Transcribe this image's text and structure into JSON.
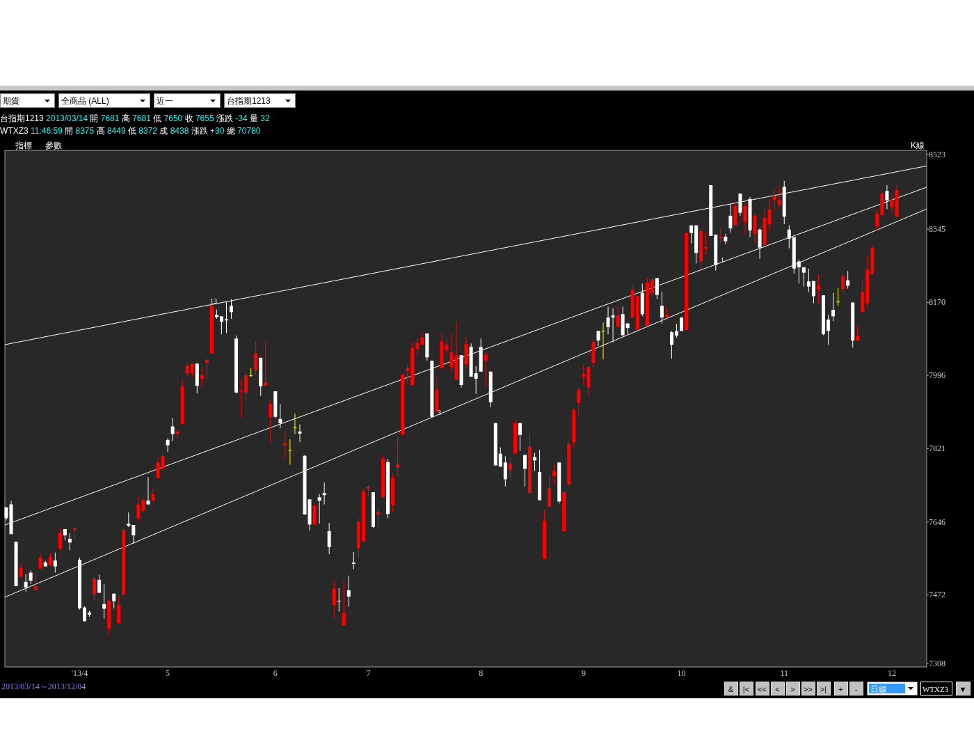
{
  "chart_data": {
    "type": "candlestick",
    "categories": [
      null,
      null,
      null,
      null,
      null,
      null,
      null,
      null,
      null,
      null,
      null,
      null,
      null,
      null,
      null,
      "'13/4",
      null,
      null,
      null,
      null,
      null,
      null,
      null,
      null,
      null,
      null,
      null,
      null,
      null,
      null,
      null,
      null,
      null,
      "5",
      null,
      null,
      null,
      null,
      null,
      null,
      null,
      null,
      null,
      null,
      null,
      null,
      null,
      null,
      null,
      null,
      null,
      null,
      null,
      null,
      null,
      "6",
      null,
      null,
      null,
      null,
      null,
      null,
      null,
      null,
      null,
      null,
      null,
      null,
      null,
      null,
      null,
      null,
      null,
      null,
      "7",
      null,
      null,
      null,
      null,
      null,
      null,
      null,
      null,
      null,
      null,
      null,
      null,
      null,
      null,
      null,
      null,
      null,
      null,
      null,
      null,
      null,
      null,
      "8",
      null,
      null,
      null,
      null,
      null,
      null,
      null,
      null,
      null,
      null,
      null,
      null,
      null,
      null,
      null,
      null,
      null,
      null,
      null,
      null,
      "9",
      null,
      null,
      null,
      null,
      null,
      null,
      null,
      null,
      null,
      null,
      null,
      null,
      null,
      null,
      null,
      null,
      null,
      null,
      null,
      "10",
      null,
      null,
      null,
      null,
      null,
      null,
      null,
      null,
      null,
      null,
      null,
      null,
      null,
      null,
      null,
      null,
      null,
      null,
      null,
      null,
      "11",
      null,
      null,
      null,
      null,
      null,
      null,
      null,
      null,
      null,
      null,
      null,
      null,
      null,
      null,
      null,
      null,
      null,
      null,
      null,
      null,
      null,
      "12",
      null
    ],
    "ohlc": [
      [
        7681,
        7681,
        7650,
        7655
      ],
      [
        7688,
        7697,
        7617,
        7617
      ],
      [
        7599,
        7599,
        7493,
        7493
      ],
      [
        7515,
        7548,
        7515,
        7536
      ],
      [
        7503,
        7521,
        7480,
        7490
      ],
      [
        7525,
        7530,
        7498,
        7506
      ],
      [
        7483,
        7525,
        7483,
        7492
      ],
      [
        7535,
        7569,
        7535,
        7561
      ],
      [
        7549,
        7553,
        7540,
        7540
      ],
      [
        7544,
        7573,
        7540,
        7563
      ],
      [
        7554,
        7573,
        7525,
        7540
      ],
      [
        7583,
        7631,
        7578,
        7619
      ],
      [
        7629,
        7629,
        7602,
        7614
      ],
      [
        7606,
        7619,
        7578,
        7597
      ],
      [
        7627,
        7634,
        7606,
        7631
      ],
      [
        7556,
        7561,
        7437,
        7440
      ],
      [
        7442,
        7445,
        7409,
        7409
      ],
      [
        7430,
        7434,
        7420,
        7425
      ],
      [
        7473,
        7515,
        7457,
        7511
      ],
      [
        7508,
        7520,
        7477,
        7477
      ],
      [
        7450,
        7498,
        7415,
        7439
      ],
      [
        7392,
        7462,
        7376,
        7458
      ],
      [
        7475,
        7475,
        7440,
        7457
      ],
      [
        7404,
        7470,
        7404,
        7448
      ],
      [
        7472,
        7631,
        7472,
        7627
      ],
      [
        7642,
        7669,
        7634,
        7637
      ],
      [
        7639,
        7639,
        7594,
        7614
      ],
      [
        7655,
        7705,
        7647,
        7688
      ],
      [
        7672,
        7702,
        7669,
        7698
      ],
      [
        7697,
        7753,
        7688,
        7688
      ],
      [
        7697,
        7728,
        7697,
        7712
      ],
      [
        7751,
        7801,
        7751,
        7788
      ],
      [
        7773,
        7806,
        7773,
        7803
      ],
      [
        7842,
        7846,
        7813,
        7829
      ],
      [
        7874,
        7895,
        7839,
        7856
      ],
      [
        7856,
        7867,
        7846,
        7862
      ],
      [
        7880,
        7986,
        7880,
        7970
      ],
      [
        8000,
        8026,
        7993,
        8018
      ],
      [
        8001,
        8024,
        7993,
        8024
      ],
      [
        8024,
        8024,
        7953,
        7971
      ],
      [
        7988,
        8016,
        7970,
        7996
      ],
      [
        8026,
        8036,
        7985,
        8033
      ],
      [
        8048,
        8165,
        8048,
        8162
      ],
      [
        8140,
        8153,
        8131,
        8135
      ],
      [
        8137,
        8137,
        8094,
        8124
      ],
      [
        8130,
        8172,
        8097,
        8127
      ],
      [
        8162,
        8178,
        8131,
        8147
      ],
      [
        8084,
        8091,
        7953,
        7955
      ],
      [
        7957,
        7986,
        7895,
        7960
      ],
      [
        7955,
        8005,
        7933,
        7996
      ],
      [
        7996,
        8013,
        7993,
        7996
      ],
      [
        8008,
        8077,
        7996,
        8049
      ],
      [
        8038,
        8038,
        7947,
        7970
      ],
      [
        7971,
        8077,
        7970,
        7980
      ],
      [
        7897,
        7938,
        7836,
        7927
      ],
      [
        7958,
        7958,
        7894,
        7897
      ],
      [
        7892,
        7927,
        7870,
        7882
      ],
      [
        7829,
        7862,
        7798,
        7834
      ],
      [
        7818,
        7844,
        7783,
        7818
      ],
      [
        7872,
        7905,
        7856,
        7872
      ],
      [
        7862,
        7879,
        7837,
        7857
      ],
      [
        7804,
        7806,
        7664,
        7664
      ],
      [
        7700,
        7700,
        7626,
        7640
      ],
      [
        7640,
        7692,
        7640,
        7685
      ],
      [
        7705,
        7713,
        7642,
        7697
      ],
      [
        7715,
        7740,
        7688,
        7710
      ],
      [
        7624,
        7644,
        7569,
        7586
      ],
      [
        7448,
        7506,
        7417,
        7487
      ],
      [
        7458,
        7488,
        7432,
        7458
      ],
      [
        7399,
        7506,
        7399,
        7429
      ],
      [
        7483,
        7518,
        7444,
        7468
      ],
      [
        7549,
        7574,
        7533,
        7546
      ],
      [
        7584,
        7654,
        7559,
        7647
      ],
      [
        7599,
        7727,
        7599,
        7718
      ],
      [
        7725,
        7735,
        7707,
        7730
      ],
      [
        7717,
        7717,
        7631,
        7634
      ],
      [
        7664,
        7680,
        7632,
        7669
      ],
      [
        7705,
        7806,
        7705,
        7796
      ],
      [
        7789,
        7796,
        7655,
        7665
      ],
      [
        7687,
        7763,
        7669,
        7751
      ],
      [
        7776,
        7849,
        7755,
        7784
      ],
      [
        7854,
        7998,
        7854,
        7998
      ],
      [
        8006,
        8019,
        7975,
        8013
      ],
      [
        7973,
        8077,
        7973,
        8062
      ],
      [
        8059,
        8086,
        8041,
        8074
      ],
      [
        8069,
        8100,
        8069,
        8086
      ],
      [
        8096,
        8096,
        8031,
        8039
      ],
      [
        8031,
        8031,
        7897,
        7897
      ],
      [
        7909,
        7991,
        7909,
        7962
      ],
      [
        8013,
        8096,
        8013,
        8077
      ],
      [
        8056,
        8082,
        8049,
        8069
      ],
      [
        8016,
        8096,
        8003,
        8051
      ],
      [
        7986,
        8124,
        7986,
        8044
      ],
      [
        8044,
        8044,
        7967,
        7973
      ],
      [
        8023,
        8087,
        8013,
        8071
      ],
      [
        8064,
        8072,
        7993,
        7993
      ],
      [
        8001,
        8018,
        7952,
        7988
      ],
      [
        8064,
        8084,
        8005,
        8005
      ],
      [
        8031,
        8051,
        7970,
        8046
      ],
      [
        8005,
        8005,
        7920,
        7932
      ],
      [
        7882,
        7882,
        7781,
        7781
      ],
      [
        7809,
        7824,
        7778,
        7778
      ],
      [
        7788,
        7803,
        7731,
        7748
      ],
      [
        7771,
        7803,
        7750,
        7786
      ],
      [
        7809,
        7889,
        7809,
        7882
      ],
      [
        7882,
        7882,
        7816,
        7854
      ],
      [
        7806,
        7806,
        7730,
        7773
      ],
      [
        7715,
        7857,
        7715,
        7826
      ],
      [
        7801,
        7811,
        7768,
        7793
      ],
      [
        7765,
        7818,
        7698,
        7698
      ],
      [
        7558,
        7677,
        7558,
        7649
      ],
      [
        7682,
        7755,
        7682,
        7727
      ],
      [
        7755,
        7786,
        7735,
        7768
      ],
      [
        7788,
        7788,
        7690,
        7695
      ],
      [
        7624,
        7717,
        7624,
        7717
      ],
      [
        7735,
        7837,
        7735,
        7832
      ],
      [
        7836,
        7918,
        7824,
        7913
      ],
      [
        7930,
        7967,
        7899,
        7962
      ],
      [
        7993,
        8021,
        7973,
        7998
      ],
      [
        7967,
        8016,
        7947,
        8016
      ],
      [
        8026,
        8082,
        8016,
        8076
      ],
      [
        8102,
        8102,
        8066,
        8079
      ],
      [
        8102,
        8122,
        8034,
        8102
      ],
      [
        8134,
        8160,
        8094,
        8111
      ],
      [
        8139,
        8156,
        8075,
        8134
      ],
      [
        8112,
        8160,
        8112,
        8139
      ],
      [
        8142,
        8160,
        8089,
        8092
      ],
      [
        8120,
        8120,
        8094,
        8109
      ],
      [
        8134,
        8210,
        8134,
        8200
      ],
      [
        8105,
        8185,
        8105,
        8185
      ],
      [
        8193,
        8215,
        8137,
        8142
      ],
      [
        8114,
        8228,
        8114,
        8218
      ],
      [
        8192,
        8228,
        8182,
        8225
      ],
      [
        8228,
        8228,
        8178,
        8188
      ],
      [
        8162,
        8196,
        8119,
        8134
      ],
      [
        8135,
        8160,
        8135,
        8140
      ],
      [
        8099,
        8102,
        8036,
        8069
      ],
      [
        8102,
        8119,
        8086,
        8091
      ],
      [
        8134,
        8134,
        8102,
        8102
      ],
      [
        8104,
        8336,
        8104,
        8336
      ],
      [
        8354,
        8354,
        8311,
        8336
      ],
      [
        8354,
        8354,
        8263,
        8288
      ],
      [
        8268,
        8349,
        8251,
        8340
      ],
      [
        8299,
        8342,
        8284,
        8302
      ],
      [
        8450,
        8450,
        8329,
        8329
      ],
      [
        8332,
        8332,
        8246,
        8259
      ],
      [
        8324,
        8349,
        8311,
        8327
      ],
      [
        8327,
        8334,
        8309,
        8316
      ],
      [
        8377,
        8405,
        8337,
        8347
      ],
      [
        8354,
        8410,
        8354,
        8400
      ],
      [
        8430,
        8430,
        8377,
        8384
      ],
      [
        8362,
        8407,
        8334,
        8400
      ],
      [
        8417,
        8422,
        8326,
        8342
      ],
      [
        8334,
        8382,
        8311,
        8377
      ],
      [
        8344,
        8347,
        8274,
        8301
      ],
      [
        8307,
        8395,
        8307,
        8372
      ],
      [
        8357,
        8417,
        8342,
        8392
      ],
      [
        8414,
        8441,
        8390,
        8425
      ],
      [
        8403,
        8446,
        8393,
        8414
      ],
      [
        8446,
        8460,
        8357,
        8375
      ],
      [
        8344,
        8354,
        8299,
        8322
      ],
      [
        8326,
        8326,
        8239,
        8251
      ],
      [
        8268,
        8273,
        8215,
        8254
      ],
      [
        8254,
        8254,
        8208,
        8241
      ],
      [
        8220,
        8251,
        8195,
        8208
      ],
      [
        8221,
        8221,
        8168,
        8185
      ],
      [
        8202,
        8238,
        8168,
        8210
      ],
      [
        8187,
        8187,
        8092,
        8094
      ],
      [
        8129,
        8140,
        8069,
        8102
      ],
      [
        8152,
        8193,
        8125,
        8137
      ],
      [
        8172,
        8205,
        8162,
        8172
      ],
      [
        8202,
        8241,
        8193,
        8233
      ],
      [
        8223,
        8245,
        8203,
        8210
      ],
      [
        8170,
        8170,
        8062,
        8079
      ],
      [
        8079,
        8114,
        8079,
        8091
      ],
      [
        8147,
        8221,
        8145,
        8195
      ],
      [
        8168,
        8281,
        8157,
        8249
      ],
      [
        8238,
        8304,
        8235,
        8301
      ],
      [
        8352,
        8393,
        8342,
        8382
      ],
      [
        8379,
        8433,
        8377,
        8430
      ],
      [
        8436,
        8450,
        8393,
        8414
      ],
      [
        8397,
        8426,
        8382,
        8415
      ],
      [
        8375,
        8449,
        8372,
        8438
      ]
    ],
    "colors": [
      "#ffffff",
      "#ffffff",
      "#ffffff",
      "#ff0000",
      "#ffffff",
      "#ffffff",
      "#ff0000",
      "#ff0000",
      "#ffffff",
      "#ff0000",
      "#ffffff",
      "#ff0000",
      "#ffffff",
      "#ffffff",
      "#ff0000",
      "#ffffff",
      "#ffffff",
      "#ffffff",
      "#ff0000",
      "#ffffff",
      "#ffffff",
      "#ff0000",
      "#ffffff",
      "#ff0000",
      "#ff0000",
      "#ffffff",
      "#ffffff",
      "#ff0000",
      "#ff0000",
      "#ffffff",
      "#ff0000",
      "#ff0000",
      "#ff0000",
      "#ffffff",
      "#ffffff",
      "#ff0000",
      "#ff0000",
      "#ff0000",
      "#ff0000",
      "#ffffff",
      "#ff0000",
      "#ff0000",
      "#ff0000",
      "#ffffff",
      "#ffffff",
      "#ffffff",
      "#ffffff",
      "#ffffff",
      "#ff0000",
      "#ff0000",
      "#ffff00",
      "#ff0000",
      "#ffffff",
      "#ff0000",
      "#ff0000",
      "#ffffff",
      "#ffffff",
      "#ff0000",
      "#ffff00",
      "#ffff00",
      "#ffffff",
      "#ffffff",
      "#ffffff",
      "#ff0000",
      "#ffffff",
      "#ffffff",
      "#ffffff",
      "#ff0000",
      "#ffffff",
      "#ff0000",
      "#ffffff",
      "#ffffff",
      "#ff0000",
      "#ff0000",
      "#ff0000",
      "#ffffff",
      "#ff0000",
      "#ff0000",
      "#ffffff",
      "#ff0000",
      "#ff0000",
      "#ff0000",
      "#ff0000",
      "#ff0000",
      "#ff0000",
      "#ff0000",
      "#ffffff",
      "#ffffff",
      "#ff0000",
      "#ff0000",
      "#ff0000",
      "#ff0000",
      "#ff0000",
      "#ffffff",
      "#ff0000",
      "#ffffff",
      "#ffffff",
      "#ffffff",
      "#ff0000",
      "#ffffff",
      "#ffffff",
      "#ffffff",
      "#ffffff",
      "#ff0000",
      "#ff0000",
      "#ffffff",
      "#ffffff",
      "#ff0000",
      "#ffffff",
      "#ffffff",
      "#ff0000",
      "#ff0000",
      "#ff0000",
      "#ffffff",
      "#ff0000",
      "#ff0000",
      "#ff0000",
      "#ff0000",
      "#ff0000",
      "#ff0000",
      "#ff0000",
      "#ffffff",
      "#ffff00",
      "#ffffff",
      "#ffffff",
      "#ff0000",
      "#ffffff",
      "#ffffff",
      "#ff0000",
      "#ff0000",
      "#ffffff",
      "#ff0000",
      "#ff0000",
      "#ffffff",
      "#ffffff",
      "#ff0000",
      "#ffffff",
      "#ffffff",
      "#ffffff",
      "#ff0000",
      "#ffffff",
      "#ffffff",
      "#ff0000",
      "#ff0000",
      "#ffffff",
      "#ffffff",
      "#ff0000",
      "#ffffff",
      "#ffffff",
      "#ff0000",
      "#ffffff",
      "#ff0000",
      "#ffffff",
      "#ff0000",
      "#ffffff",
      "#ff0000",
      "#ff0000",
      "#ff0000",
      "#ff0000",
      "#ffffff",
      "#ffffff",
      "#ffffff",
      "#ffffff",
      "#ffffff",
      "#ffffff",
      "#ffffff",
      "#ff0000",
      "#ffffff",
      "#ffffff",
      "#ffffff",
      "#ffff00",
      "#ff0000",
      "#ffffff",
      "#ffffff",
      "#ff0000",
      "#ff0000",
      "#ff0000",
      "#ff0000",
      "#ff0000",
      "#ff0000",
      "#ffffff",
      "#ff0000",
      "#ff0000"
    ],
    "series": [
      {
        "type": "line",
        "color": "#ffffff",
        "values": [
          8070,
          null,
          null,
          null,
          null,
          null,
          null,
          null,
          null,
          null,
          null,
          null,
          null,
          null,
          null,
          null,
          null,
          null,
          null,
          null,
          null,
          null,
          null,
          null,
          null,
          null,
          null,
          null,
          null,
          null,
          null,
          null,
          null,
          null,
          null,
          null,
          null,
          null,
          null,
          null,
          null,
          null,
          null,
          null,
          null,
          null,
          null,
          null,
          null,
          null,
          null,
          null,
          null,
          null,
          null,
          null,
          null,
          null,
          null,
          null,
          null,
          null,
          null,
          null,
          null,
          null,
          null,
          null,
          null,
          null,
          null,
          null,
          null,
          null,
          null,
          null,
          null,
          null,
          null,
          null,
          null,
          null,
          null,
          null,
          null,
          null,
          null,
          null,
          null,
          null,
          null,
          null,
          null,
          null,
          null,
          null,
          null,
          null,
          null,
          null,
          null,
          null,
          null,
          null,
          null,
          null,
          null,
          null,
          null,
          null,
          null,
          null,
          null,
          null,
          null,
          null,
          null,
          null,
          null,
          null,
          null,
          null,
          null,
          null,
          null,
          null,
          null,
          null,
          null,
          null,
          null,
          null,
          null,
          null,
          null,
          null,
          null,
          null,
          null,
          null,
          null,
          null,
          null,
          null,
          null,
          null,
          null,
          null,
          null,
          null,
          null,
          null,
          null,
          null,
          null,
          null,
          null,
          null,
          null,
          null,
          null,
          null,
          null,
          null,
          null,
          null,
          null,
          null,
          null,
          null,
          null,
          null,
          null,
          null,
          null,
          null,
          null,
          null,
          null,
          null,
          null,
          null,
          8482
        ]
      },
      {
        "type": "line",
        "color": "#ffffff",
        "values": [
          7640,
          null,
          null,
          null,
          null,
          null,
          null,
          null,
          null,
          null,
          null,
          null,
          null,
          null,
          null,
          null,
          null,
          null,
          null,
          null,
          null,
          null,
          null,
          null,
          null,
          null,
          null,
          null,
          null,
          null,
          null,
          null,
          null,
          null,
          null,
          null,
          null,
          null,
          null,
          null,
          null,
          null,
          null,
          null,
          null,
          null,
          null,
          null,
          null,
          null,
          null,
          null,
          null,
          null,
          null,
          null,
          null,
          null,
          null,
          null,
          null,
          null,
          null,
          null,
          null,
          null,
          null,
          null,
          null,
          null,
          null,
          null,
          null,
          null,
          null,
          null,
          null,
          null,
          null,
          null,
          null,
          null,
          null,
          null,
          null,
          null,
          null,
          null,
          null,
          null,
          null,
          null,
          null,
          null,
          null,
          null,
          null,
          null,
          null,
          null,
          null,
          null,
          null,
          null,
          null,
          null,
          null,
          null,
          null,
          null,
          null,
          null,
          null,
          null,
          null,
          null,
          null,
          null,
          null,
          null,
          null,
          null,
          null,
          null,
          null,
          null,
          null,
          null,
          null,
          null,
          null,
          null,
          null,
          null,
          null,
          null,
          null,
          null,
          null,
          null,
          null,
          null,
          null,
          null,
          null,
          null,
          null,
          null,
          null,
          null,
          null,
          null,
          null,
          null,
          null,
          null,
          null,
          null,
          null,
          null,
          null,
          null,
          null,
          null,
          null,
          null,
          null,
          null,
          null,
          null,
          null,
          null,
          null,
          null,
          null,
          null,
          null,
          null,
          null,
          null,
          null,
          null,
          8419
        ]
      },
      {
        "type": "line",
        "color": "#ffffff",
        "values": [
          7468,
          null,
          null,
          null,
          null,
          null,
          null,
          null,
          null,
          null,
          null,
          null,
          null,
          null,
          null,
          null,
          null,
          null,
          null,
          null,
          null,
          null,
          null,
          null,
          null,
          null,
          null,
          null,
          null,
          null,
          null,
          null,
          null,
          null,
          null,
          null,
          null,
          null,
          null,
          null,
          null,
          null,
          null,
          null,
          null,
          null,
          null,
          null,
          null,
          null,
          null,
          null,
          null,
          null,
          null,
          null,
          null,
          null,
          null,
          null,
          null,
          null,
          null,
          null,
          null,
          null,
          null,
          null,
          null,
          null,
          null,
          null,
          null,
          null,
          null,
          null,
          null,
          null,
          null,
          null,
          null,
          null,
          null,
          null,
          null,
          null,
          null,
          null,
          null,
          null,
          null,
          null,
          null,
          null,
          null,
          null,
          null,
          null,
          null,
          null,
          null,
          null,
          null,
          null,
          null,
          null,
          null,
          null,
          null,
          null,
          null,
          null,
          null,
          null,
          null,
          null,
          null,
          null,
          null,
          null,
          null,
          null,
          null,
          null,
          null,
          null,
          null,
          null,
          null,
          null,
          null,
          null,
          null,
          null,
          null,
          null,
          null,
          null,
          null,
          null,
          null,
          null,
          null,
          null,
          null,
          null,
          null,
          null,
          null,
          null,
          null,
          null,
          null,
          null,
          null,
          null,
          null,
          null,
          null,
          null,
          null,
          null,
          null,
          null,
          null,
          null,
          null,
          null,
          null,
          null,
          null,
          null,
          null,
          null,
          null,
          null,
          null,
          null,
          null,
          null,
          null,
          null,
          8363
        ]
      }
    ],
    "ylim": [
      7300,
      8533
    ],
    "yticks": [
      7308,
      7472,
      7646,
      7821,
      7996,
      8170,
      8345,
      8523
    ],
    "annotations": [
      "期貨",
      "全商品 (ALL)",
      "近一",
      "台指期1213",
      "台指期1213 2013/03/14 開 7681 高 7681 低 7650 收 7655 漲跌 -34 量 32",
      "WTXZ3 11:46:59 開 8375 高 8449 低 8372 成 8438 漲跌 +30 總 70780",
      "指標",
      "參數",
      "K線",
      "13",
      "3",
      "1",
      "2013/03/14～2013/12/04",
      "&",
      "|<",
      "<<",
      "<",
      ">",
      ">>",
      ">|",
      "+",
      "-",
      "日線",
      "WTXZ3",
      "▼"
    ]
  }
}
